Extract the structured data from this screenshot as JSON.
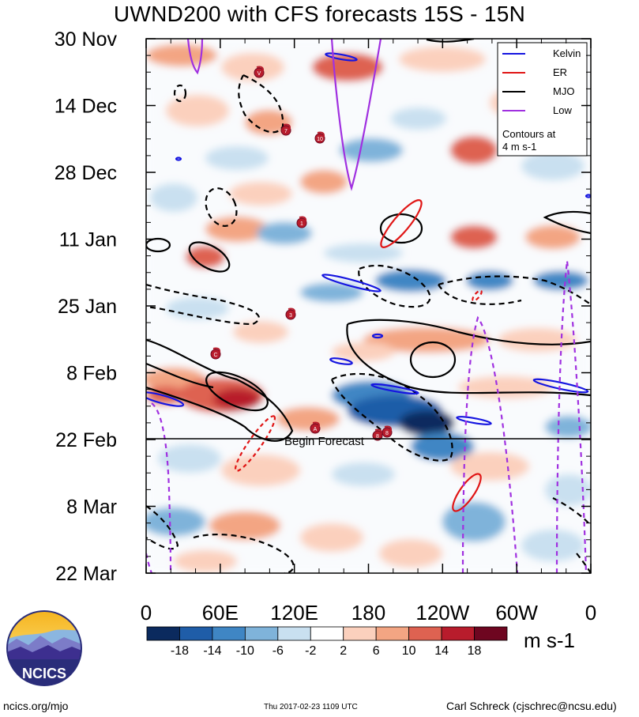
{
  "title": "UWND200 with CFS forecasts  15S - 15N",
  "chart_data": {
    "type": "heatmap",
    "title": "UWND200 with CFS forecasts  15S - 15N",
    "variable": "200 hPa zonal wind anomaly",
    "units": "m s-1",
    "y_axis": {
      "labels": [
        "30 Nov",
        "14 Dec",
        "28 Dec",
        "11 Jan",
        "25 Jan",
        "8 Feb",
        "22 Feb",
        "8 Mar",
        "22 Mar"
      ],
      "direction": "time increasing downward"
    },
    "x_axis": {
      "labels": [
        "0",
        "60E",
        "120E",
        "180",
        "120W",
        "60W",
        "0"
      ],
      "longitude_range": [
        0,
        360
      ]
    },
    "colorbar": {
      "levels": [
        "-18",
        "-14",
        "-10",
        "-6",
        "-2",
        "2",
        "6",
        "10",
        "14",
        "18"
      ],
      "colors": [
        "#0b2a5e",
        "#1f5da8",
        "#3f86c4",
        "#7fb3da",
        "#c9e0f0",
        "#ffffff",
        "#fbd0bd",
        "#f3a583",
        "#de6251",
        "#b81c2c",
        "#6e0620"
      ]
    },
    "legend": {
      "placement": "top-right",
      "entries": [
        {
          "label": "Kelvin",
          "color": "#1515e0"
        },
        {
          "label": "ER",
          "color": "#e01515"
        },
        {
          "label": "MJO",
          "color": "#000000"
        },
        {
          "label": "Low",
          "color": "#a030e0"
        }
      ],
      "note_line1": "Contours at",
      "note_line2": "4 m s-1"
    },
    "forecast_label": "Begin Forecast",
    "forecast_start": "22 Feb",
    "tropical_cyclone_labels": [
      "V",
      "7",
      "10",
      "1",
      "3",
      "C",
      "A",
      "8",
      "8"
    ]
  },
  "units_label": "m s-1",
  "logo_text": "NCICS",
  "footer": {
    "left": "ncics.org/mjo",
    "middle": "Thu 2017-02-23 1109 UTC",
    "right": "Carl Schreck (cjschrec@ncsu.edu)"
  }
}
